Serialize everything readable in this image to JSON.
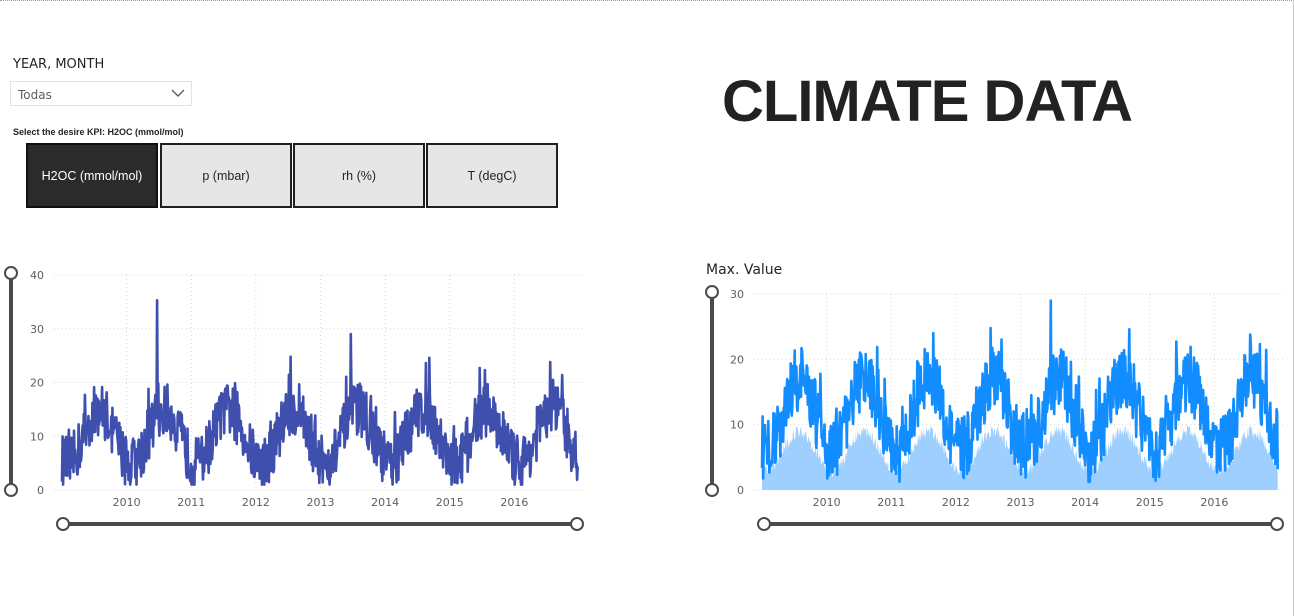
{
  "slicer": {
    "title": "YEAR, MONTH",
    "value": "Todas"
  },
  "kpi_selector": {
    "label": "Select the desire KPI: H2OC (mmol/mol)",
    "buttons": [
      {
        "label": "H2OC (mmol/mol)",
        "selected": true
      },
      {
        "label": "p (mbar)",
        "selected": false
      },
      {
        "label": "rh (%)",
        "selected": false
      },
      {
        "label": "T (degC)",
        "selected": false
      }
    ]
  },
  "page_title": "CLIMATE DATA",
  "colors": {
    "line_left": "#3f4fae",
    "line_right": "#118dff",
    "area_right": "#9fcfff",
    "button_active": "#2b2b2b",
    "button_inactive": "#e6e6e6"
  },
  "chart_data": [
    {
      "type": "line",
      "title": "",
      "xlabel": "",
      "ylabel": "",
      "x_ticks": [
        "2010",
        "2011",
        "2012",
        "2013",
        "2014",
        "2015",
        "2016"
      ],
      "y_ticks": [
        0,
        10,
        20,
        30,
        40
      ],
      "xlim": [
        2009.0,
        2017.0
      ],
      "ylim": [
        0,
        40
      ],
      "grid": true,
      "series": [
        {
          "name": "",
          "seasonal": {
            "year_start": 2009.0,
            "year_end": 2016.98,
            "winter_low": 5,
            "summer_high": 15,
            "noise": 5
          },
          "spikes": [
            {
              "x": 2010.47,
              "y": 35.3
            },
            {
              "x": 2013.47,
              "y": 29
            },
            {
              "x": 2012.54,
              "y": 24.8
            },
            {
              "x": 2014.68,
              "y": 24.6
            },
            {
              "x": 2016.55,
              "y": 23.8
            }
          ],
          "max": 35.3,
          "min": 1
        }
      ]
    },
    {
      "type": "area",
      "title": "Max. Value",
      "xlabel": "",
      "ylabel": "",
      "x_ticks": [
        "2010",
        "2011",
        "2012",
        "2013",
        "2014",
        "2015",
        "2016"
      ],
      "y_ticks": [
        0,
        10,
        20,
        30
      ],
      "xlim": [
        2009.0,
        2017.0
      ],
      "ylim": [
        0,
        30
      ],
      "grid": true,
      "series": [
        {
          "name": "",
          "seasonal": {
            "year_start": 2009.0,
            "year_end": 2016.98,
            "winter_low": 6,
            "summer_high": 17,
            "noise": 5
          },
          "spikes": [
            {
              "x": 2013.47,
              "y": 29
            },
            {
              "x": 2012.54,
              "y": 24.8
            },
            {
              "x": 2014.68,
              "y": 24.6
            },
            {
              "x": 2016.55,
              "y": 23.8
            },
            {
              "x": 2011.65,
              "y": 24
            }
          ],
          "max": 29,
          "min": 1
        }
      ]
    }
  ]
}
